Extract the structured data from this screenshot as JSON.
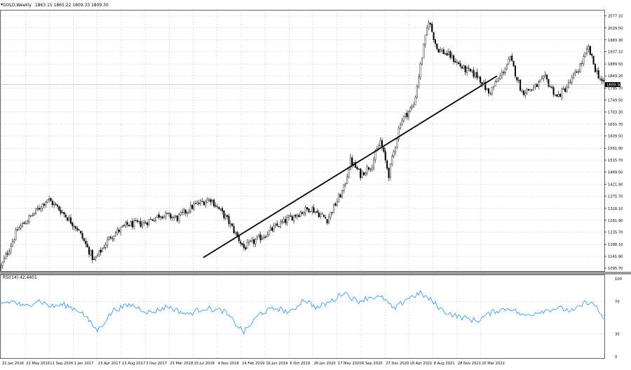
{
  "header": {
    "symbol": "GOLD,Weekly",
    "ohlc": "1863.15 1865.22 1809.33 1809.30",
    "rsi_label": "RSI(14) 42.4401"
  },
  "colors": {
    "price": "#000000",
    "rsi_line": "#1e90ff",
    "grid": "#c0c0c0",
    "trendline": "#000000",
    "separator": "#9a9a9a"
  },
  "chart_data": [
    {
      "type": "candlestick",
      "title": "GOLD,Weekly",
      "ylim": [
        1095.7,
        2100
      ],
      "price_ticks": [
        "2077.10",
        "2029.50",
        "1983.30",
        "1937.10",
        "1889.50",
        "1843.20",
        "1795.70",
        "1749.50",
        "1703.30",
        "1655.70",
        "1609.50",
        "1561.90",
        "1515.70",
        "1469.50",
        "1421.90",
        "1375.70",
        "1328.10",
        "1281.90",
        "1235.70",
        "1188.10",
        "1141.90",
        "1095.70"
      ],
      "current_price": "1809.30",
      "x_ticks": [
        "31 Jan 2016",
        "22 May 2016",
        "11 Sep 2016",
        "1 Jan 2017",
        "23 Apr 2017",
        "13 Aug 2017",
        "3 Dec 2017",
        "25 Mar 2018",
        "15 Jul 2018",
        "4 Nov 2018",
        "24 Feb 2019",
        "16 Jun 2019",
        "6 Oct 2019",
        "26 Jan 2020",
        "17 May 2020",
        "6 Sep 2020",
        "27 Dec 2020",
        "18 Apr 2021",
        "8 Aug 2021",
        "28 Nov 2021",
        "20 Mar 2022"
      ],
      "anchors": [
        [
          0,
          1100
        ],
        [
          10,
          1245
        ],
        [
          20,
          1310
        ],
        [
          28,
          1365
        ],
        [
          36,
          1320
        ],
        [
          46,
          1250
        ],
        [
          56,
          1125
        ],
        [
          66,
          1220
        ],
        [
          76,
          1265
        ],
        [
          86,
          1270
        ],
        [
          96,
          1305
        ],
        [
          106,
          1290
        ],
        [
          116,
          1340
        ],
        [
          126,
          1365
        ],
        [
          136,
          1285
        ],
        [
          146,
          1175
        ],
        [
          156,
          1215
        ],
        [
          166,
          1260
        ],
        [
          176,
          1300
        ],
        [
          186,
          1330
        ],
        [
          196,
          1285
        ],
        [
          206,
          1405
        ],
        [
          210,
          1515
        ],
        [
          216,
          1460
        ],
        [
          223,
          1500
        ],
        [
          228,
          1590
        ],
        [
          233,
          1460
        ],
        [
          240,
          1665
        ],
        [
          248,
          1730
        ],
        [
          253,
          1920
        ],
        [
          257,
          2060
        ],
        [
          262,
          1950
        ],
        [
          270,
          1920
        ],
        [
          278,
          1870
        ],
        [
          287,
          1840
        ],
        [
          293,
          1775
        ],
        [
          300,
          1840
        ],
        [
          306,
          1910
        ],
        [
          313,
          1780
        ],
        [
          320,
          1795
        ],
        [
          327,
          1835
        ],
        [
          334,
          1760
        ],
        [
          340,
          1800
        ],
        [
          347,
          1870
        ],
        [
          353,
          1950
        ],
        [
          357,
          1870
        ],
        [
          362,
          1809
        ]
      ],
      "trendline": {
        "from": [
          "15 Jul 2018",
          1137
        ],
        "to": [
          "20 Mar 2022",
          1843
        ]
      }
    },
    {
      "type": "line",
      "title": "RSI(14) 42.4401",
      "ylim": [
        0,
        100
      ],
      "level_ticks": [
        "100",
        "70",
        "30",
        "0"
      ],
      "anchors": [
        [
          0,
          68
        ],
        [
          8,
          70
        ],
        [
          14,
          63
        ],
        [
          22,
          72
        ],
        [
          30,
          64
        ],
        [
          38,
          66
        ],
        [
          48,
          58
        ],
        [
          58,
          34
        ],
        [
          68,
          60
        ],
        [
          78,
          66
        ],
        [
          90,
          56
        ],
        [
          100,
          64
        ],
        [
          112,
          54
        ],
        [
          122,
          62
        ],
        [
          134,
          58
        ],
        [
          146,
          32
        ],
        [
          156,
          56
        ],
        [
          166,
          62
        ],
        [
          174,
          56
        ],
        [
          182,
          73
        ],
        [
          190,
          62
        ],
        [
          200,
          72
        ],
        [
          206,
          82
        ],
        [
          214,
          70
        ],
        [
          222,
          76
        ],
        [
          230,
          74
        ],
        [
          236,
          60
        ],
        [
          244,
          74
        ],
        [
          252,
          80
        ],
        [
          258,
          72
        ],
        [
          266,
          58
        ],
        [
          274,
          52
        ],
        [
          286,
          46
        ],
        [
          296,
          58
        ],
        [
          306,
          62
        ],
        [
          314,
          52
        ],
        [
          324,
          58
        ],
        [
          334,
          62
        ],
        [
          344,
          58
        ],
        [
          352,
          70
        ],
        [
          358,
          64
        ],
        [
          362,
          45
        ]
      ]
    }
  ]
}
